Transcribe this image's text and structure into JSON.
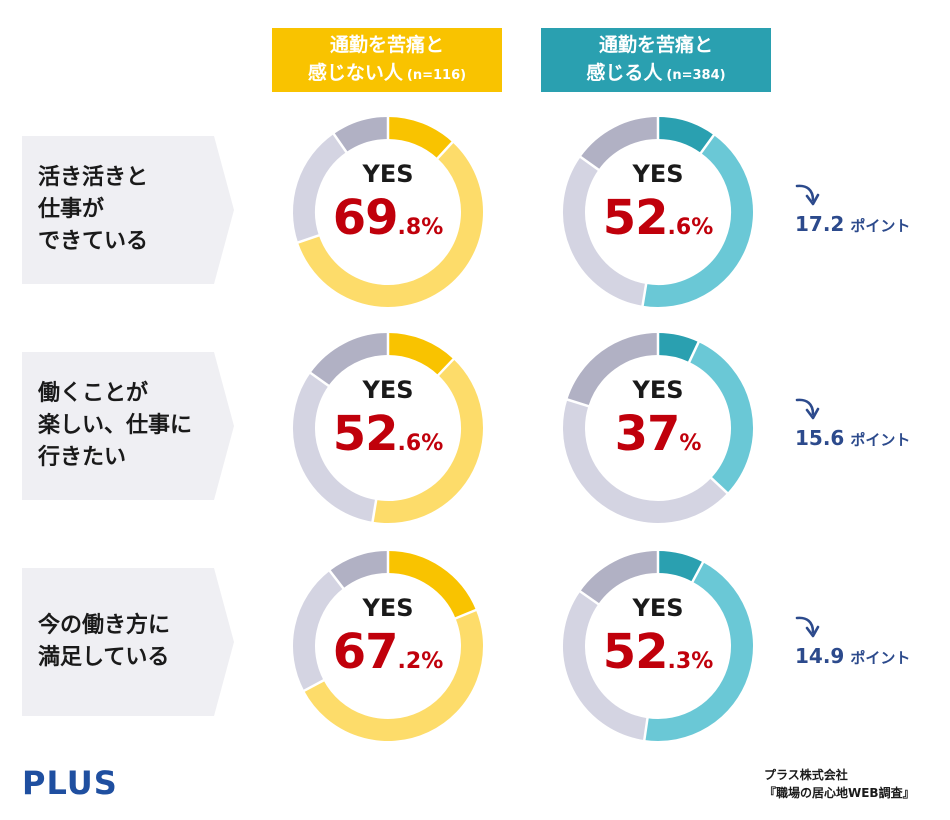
{
  "headers": [
    {
      "line1": "通勤を苦痛と",
      "line2": "感じない人",
      "n": "(n=116)",
      "color": "#f9c300"
    },
    {
      "line1": "通勤を苦痛と",
      "line2": "感じる人",
      "n": "(n=384)",
      "color": "#2aa0b0"
    }
  ],
  "rows": [
    {
      "label": [
        "活き活きと",
        "仕事が",
        "できている"
      ],
      "a": {
        "yes_label": "YES",
        "int": "69",
        "dec": ".8%",
        "value": 69.8
      },
      "b": {
        "yes_label": "YES",
        "int": "52",
        "dec": ".6%",
        "value": 52.6
      },
      "diff": "17.2",
      "diff_unit": "ポイント"
    },
    {
      "label": [
        "働くことが",
        "楽しい、仕事に",
        "行きたい"
      ],
      "a": {
        "yes_label": "YES",
        "int": "52",
        "dec": ".6%",
        "value": 52.6
      },
      "b": {
        "yes_label": "YES",
        "int": "37",
        "dec": "%",
        "value": 37
      },
      "diff": "15.6",
      "diff_unit": "ポイント"
    },
    {
      "label": [
        "今の働き方に",
        "満足している"
      ],
      "a": {
        "yes_label": "YES",
        "int": "67",
        "dec": ".2%",
        "value": 67.2
      },
      "b": {
        "yes_label": "YES",
        "int": "52",
        "dec": ".3%",
        "value": 52.3
      },
      "diff": "14.9",
      "diff_unit": "ポイント"
    }
  ],
  "chart_data": {
    "type": "pie",
    "series_a": {
      "name": "通勤を苦痛と感じない人 (n=116)",
      "values": [
        69.8,
        52.6,
        67.2
      ]
    },
    "series_b": {
      "name": "通勤を苦痛と感じる人 (n=384)",
      "values": [
        52.6,
        37,
        52.3
      ]
    },
    "categories": [
      "活き活きと仕事ができている",
      "働くことが楽しい、仕事に行きたい",
      "今の働き方に満足している"
    ],
    "colors": {
      "a_dark": "#f9c300",
      "a_light": "#fddc6a",
      "b_dark": "#2aa0b0",
      "b_light": "#6ac8d6",
      "gray_light": "#d4d4e2",
      "gray_dark": "#b1b1c4"
    }
  },
  "footer": {
    "logo": "PLUS",
    "source_line1": "プラス株式会社",
    "source_line2": "『職場の居心地WEB調査』"
  }
}
